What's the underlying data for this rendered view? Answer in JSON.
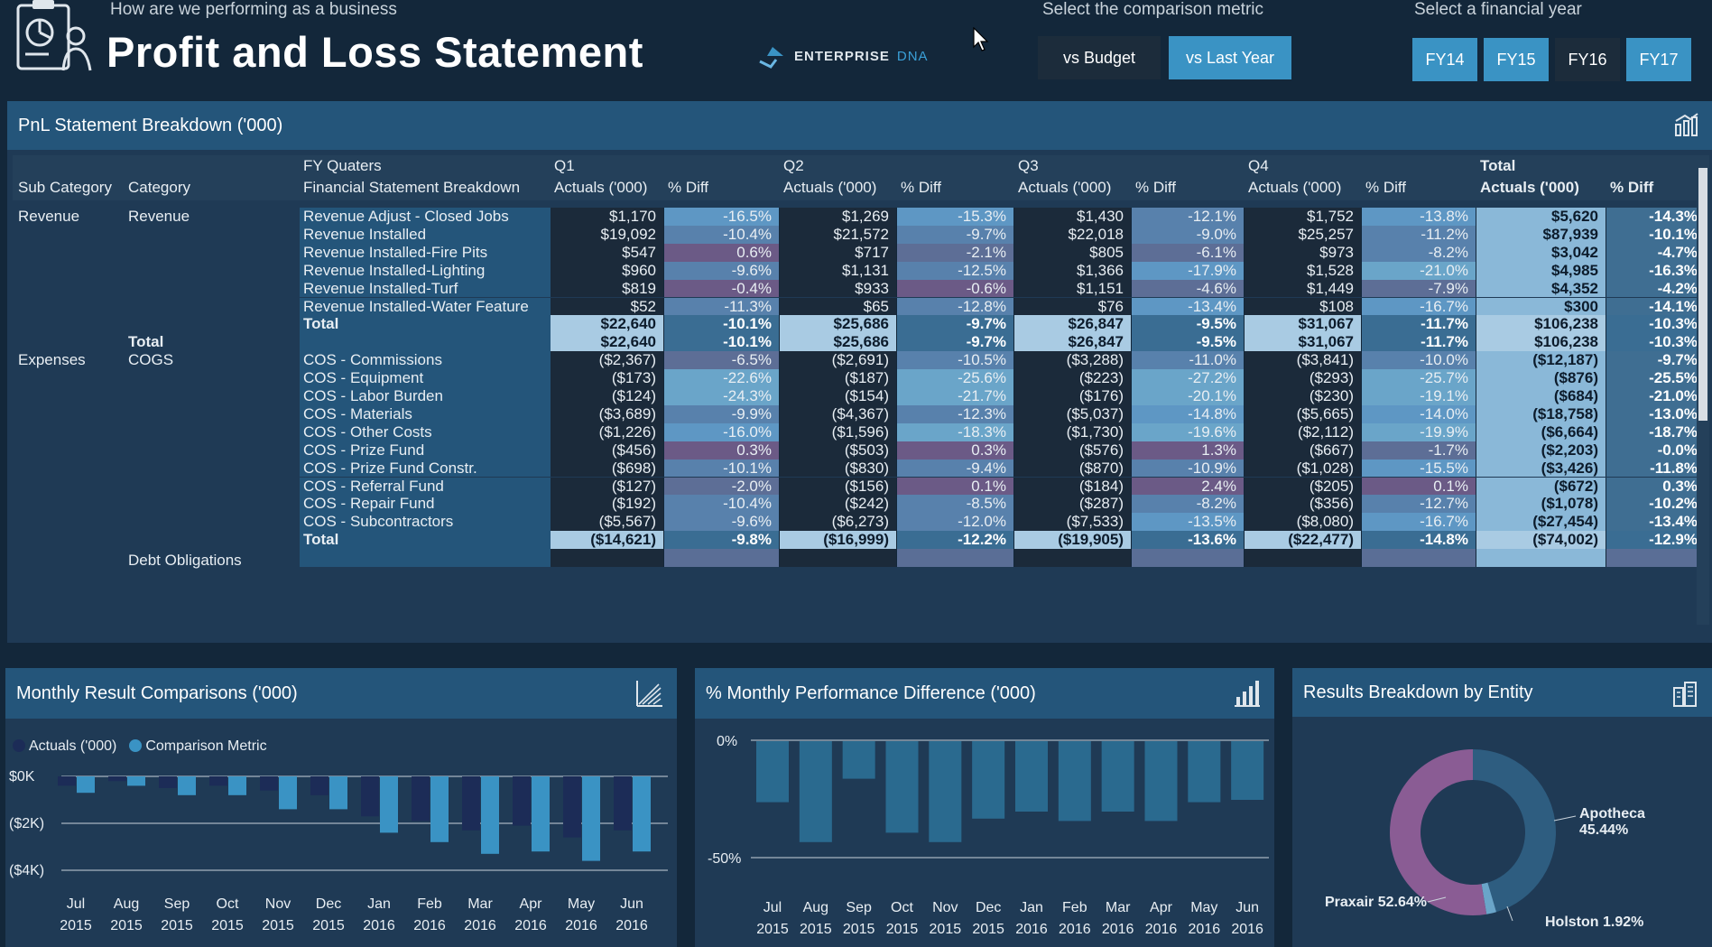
{
  "header": {
    "subtitle": "How are we performing as a business",
    "title": "Profit and Loss Statement",
    "brand_word": "ENTERPRISE",
    "brand_suffix": "DNA",
    "comparison_label": "Select the comparison metric",
    "comparison_buttons": [
      "vs Budget",
      "vs Last Year"
    ],
    "year_label": "Select a financial year",
    "year_buttons": [
      "FY14",
      "FY15",
      "FY16",
      "FY17"
    ]
  },
  "pnl": {
    "title": "PnL Statement Breakdown ('000)",
    "header_top": [
      "FY Quaters",
      "Q1",
      "Q2",
      "Q3",
      "Q4",
      "Total"
    ],
    "header_cols": [
      "Sub Category",
      "Category",
      "Financial Statement Breakdown",
      "Actuals ('000)",
      "% Diff",
      "Actuals ('000)",
      "% Diff",
      "Actuals ('000)",
      "% Diff",
      "Actuals ('000)",
      "% Diff",
      "Actuals ('000)",
      "% Diff"
    ],
    "rows": [
      {
        "sub": "Revenue",
        "cat": "Revenue",
        "item": "Revenue Adjust - Closed Jobs",
        "v": [
          "$1,170",
          "-16.5%",
          "$1,269",
          "-15.3%",
          "$1,430",
          "-12.1%",
          "$1,752",
          "-13.8%",
          "$5,620",
          "-14.3%"
        ]
      },
      {
        "sub": "",
        "cat": "",
        "item": "Revenue Installed",
        "v": [
          "$19,092",
          "-10.4%",
          "$21,572",
          "-9.7%",
          "$22,018",
          "-9.0%",
          "$25,257",
          "-11.2%",
          "$87,939",
          "-10.1%"
        ]
      },
      {
        "sub": "",
        "cat": "",
        "item": "Revenue Installed-Fire Pits",
        "v": [
          "$547",
          "0.6%",
          "$717",
          "-2.1%",
          "$805",
          "-6.1%",
          "$973",
          "-8.2%",
          "$3,042",
          "-4.7%"
        ]
      },
      {
        "sub": "",
        "cat": "",
        "item": "Revenue Installed-Lighting",
        "v": [
          "$960",
          "-9.6%",
          "$1,131",
          "-12.5%",
          "$1,366",
          "-17.9%",
          "$1,528",
          "-21.0%",
          "$4,985",
          "-16.3%"
        ]
      },
      {
        "sub": "",
        "cat": "",
        "item": "Revenue Installed-Turf",
        "v": [
          "$819",
          "-0.4%",
          "$933",
          "-0.6%",
          "$1,151",
          "-4.6%",
          "$1,449",
          "-7.9%",
          "$4,352",
          "-4.2%"
        ]
      },
      {
        "sub": "",
        "cat": "",
        "item": "Revenue Installed-Water Feature",
        "v": [
          "$52",
          "-11.3%",
          "$65",
          "-12.8%",
          "$76",
          "-13.4%",
          "$108",
          "-16.7%",
          "$300",
          "-14.1%"
        ]
      },
      {
        "sub": "",
        "cat": "",
        "item": "Total",
        "v": [
          "$22,640",
          "-10.1%",
          "$25,686",
          "-9.7%",
          "$26,847",
          "-9.5%",
          "$31,067",
          "-11.7%",
          "$106,238",
          "-10.3%"
        ],
        "type": "subtotal"
      },
      {
        "sub": "",
        "cat": "Total",
        "item": "",
        "v": [
          "$22,640",
          "-10.1%",
          "$25,686",
          "-9.7%",
          "$26,847",
          "-9.5%",
          "$31,067",
          "-11.7%",
          "$106,238",
          "-10.3%"
        ],
        "type": "cattotal"
      },
      {
        "sub": "Expenses",
        "cat": "COGS",
        "item": "COS - Commissions",
        "v": [
          "($2,367)",
          "-6.5%",
          "($2,691)",
          "-10.5%",
          "($3,288)",
          "-11.0%",
          "($3,841)",
          "-10.0%",
          "($12,187)",
          "-9.7%"
        ]
      },
      {
        "sub": "",
        "cat": "",
        "item": "COS - Equipment",
        "v": [
          "($173)",
          "-22.6%",
          "($187)",
          "-25.6%",
          "($223)",
          "-27.2%",
          "($293)",
          "-25.7%",
          "($876)",
          "-25.5%"
        ]
      },
      {
        "sub": "",
        "cat": "",
        "item": "COS - Labor Burden",
        "v": [
          "($124)",
          "-24.3%",
          "($154)",
          "-21.7%",
          "($176)",
          "-20.1%",
          "($230)",
          "-19.1%",
          "($684)",
          "-21.0%"
        ]
      },
      {
        "sub": "",
        "cat": "",
        "item": "COS - Materials",
        "v": [
          "($3,689)",
          "-9.9%",
          "($4,367)",
          "-12.3%",
          "($5,037)",
          "-14.8%",
          "($5,665)",
          "-14.0%",
          "($18,758)",
          "-13.0%"
        ]
      },
      {
        "sub": "",
        "cat": "",
        "item": "COS - Other Costs",
        "v": [
          "($1,226)",
          "-16.0%",
          "($1,596)",
          "-18.3%",
          "($1,730)",
          "-19.6%",
          "($2,112)",
          "-19.9%",
          "($6,664)",
          "-18.7%"
        ]
      },
      {
        "sub": "",
        "cat": "",
        "item": "COS - Prize Fund",
        "v": [
          "($456)",
          "0.3%",
          "($503)",
          "0.3%",
          "($576)",
          "1.3%",
          "($667)",
          "-1.7%",
          "($2,203)",
          "-0.0%"
        ]
      },
      {
        "sub": "",
        "cat": "",
        "item": "COS - Prize Fund Constr.",
        "v": [
          "($698)",
          "-10.1%",
          "($830)",
          "-9.4%",
          "($870)",
          "-10.9%",
          "($1,028)",
          "-15.5%",
          "($3,426)",
          "-11.8%"
        ]
      },
      {
        "sub": "",
        "cat": "",
        "item": "COS - Referral Fund",
        "v": [
          "($127)",
          "-2.0%",
          "($156)",
          "0.1%",
          "($184)",
          "2.4%",
          "($205)",
          "0.1%",
          "($672)",
          "0.3%"
        ]
      },
      {
        "sub": "",
        "cat": "",
        "item": "COS - Repair Fund",
        "v": [
          "($192)",
          "-10.4%",
          "($242)",
          "-8.5%",
          "($287)",
          "-8.2%",
          "($356)",
          "-12.7%",
          "($1,078)",
          "-10.2%"
        ]
      },
      {
        "sub": "",
        "cat": "",
        "item": "COS - Subcontractors",
        "v": [
          "($5,567)",
          "-9.6%",
          "($6,273)",
          "-12.0%",
          "($7,533)",
          "-13.5%",
          "($8,080)",
          "-16.7%",
          "($27,454)",
          "-13.4%"
        ]
      },
      {
        "sub": "",
        "cat": "",
        "item": "Total",
        "v": [
          "($14,621)",
          "-9.8%",
          "($16,999)",
          "-12.2%",
          "($19,905)",
          "-13.6%",
          "($22,477)",
          "-14.8%",
          "($74,002)",
          "-12.9%"
        ],
        "type": "subtotal"
      },
      {
        "sub": "",
        "cat": "Debt Obligations",
        "item": "",
        "v": [
          "",
          "",
          "",
          "",
          "",
          "",
          "",
          "",
          "",
          ""
        ],
        "type": "partial"
      }
    ]
  },
  "monthly": {
    "title": "Monthly Result Comparisons ('000)",
    "legend": [
      "Actuals ('000)",
      "Comparison Metric"
    ]
  },
  "perf": {
    "title": "% Monthly Performance Difference ('000)"
  },
  "entity": {
    "title": "Results Breakdown by Entity",
    "labels": [
      {
        "name": "Apotheca",
        "pct": "45.44%"
      },
      {
        "name": "Praxair",
        "pct": "52.64%"
      },
      {
        "name": "Holston",
        "pct": "1.92%"
      }
    ]
  },
  "colors": {
    "actuals": "#1c2c57",
    "comparison": "#3a93c4",
    "perf_bar": "#2a6a8f",
    "apotheca": "#2e5d80",
    "praxair": "#8a5c94",
    "holston": "#6aa5c9"
  },
  "chart_data": [
    {
      "type": "bar",
      "title": "Monthly Result Comparisons ('000)",
      "categories": [
        "Jul 2015",
        "Aug 2015",
        "Sep 2015",
        "Oct 2015",
        "Nov 2015",
        "Dec 2015",
        "Jan 2016",
        "Feb 2016",
        "Mar 2016",
        "Apr 2016",
        "May 2016",
        "Jun 2016"
      ],
      "x_top": [
        "Jul",
        "Aug",
        "Sep",
        "Oct",
        "Nov",
        "Dec",
        "Jan",
        "Feb",
        "Mar",
        "Apr",
        "May",
        "Jun"
      ],
      "x_bottom": [
        "2015",
        "2015",
        "2015",
        "2015",
        "2015",
        "2015",
        "2016",
        "2016",
        "2016",
        "2016",
        "2016",
        "2016"
      ],
      "series": [
        {
          "name": "Actuals ('000)",
          "values": [
            -0.4,
            -0.2,
            -0.5,
            -0.4,
            -0.6,
            -0.8,
            -1.7,
            -1.9,
            -2.3,
            -2.1,
            -2.6,
            -2.3
          ]
        },
        {
          "name": "Comparison Metric",
          "values": [
            -0.7,
            -0.4,
            -0.8,
            -0.8,
            -1.4,
            -1.4,
            -2.4,
            -2.8,
            -3.3,
            -3.2,
            -3.6,
            -3.2
          ]
        }
      ],
      "yticks": [
        "$0K",
        "($2K)",
        "($4K)"
      ],
      "ylim": [
        -4,
        0
      ],
      "legend": "top-left"
    },
    {
      "type": "bar",
      "title": "% Monthly Performance Difference ('000)",
      "categories": [
        "Jul 2015",
        "Aug 2015",
        "Sep 2015",
        "Oct 2015",
        "Nov 2015",
        "Dec 2015",
        "Jan 2016",
        "Feb 2016",
        "Mar 2016",
        "Apr 2016",
        "May 2016",
        "Jun 2016"
      ],
      "x_top": [
        "Jul",
        "Aug",
        "Sep",
        "Oct",
        "Nov",
        "Dec",
        "Jan",
        "Feb",
        "Mar",
        "Apr",
        "May",
        "Jun"
      ],
      "x_bottom": [
        "2015",
        "2015",
        "2015",
        "2015",
        "2015",
        "2015",
        "2016",
        "2016",
        "2016",
        "2016",
        "2016",
        "2016"
      ],
      "values": [
        -26,
        -43,
        -16,
        -39,
        -43,
        -33,
        -30,
        -34,
        -30,
        -34,
        -26,
        -25
      ],
      "yticks": [
        "0%",
        "-50%"
      ],
      "ylim": [
        -50,
        0
      ]
    },
    {
      "type": "pie",
      "title": "Results Breakdown by Entity",
      "categories": [
        "Apotheca",
        "Praxair",
        "Holston"
      ],
      "values": [
        45.44,
        52.64,
        1.92
      ]
    }
  ]
}
